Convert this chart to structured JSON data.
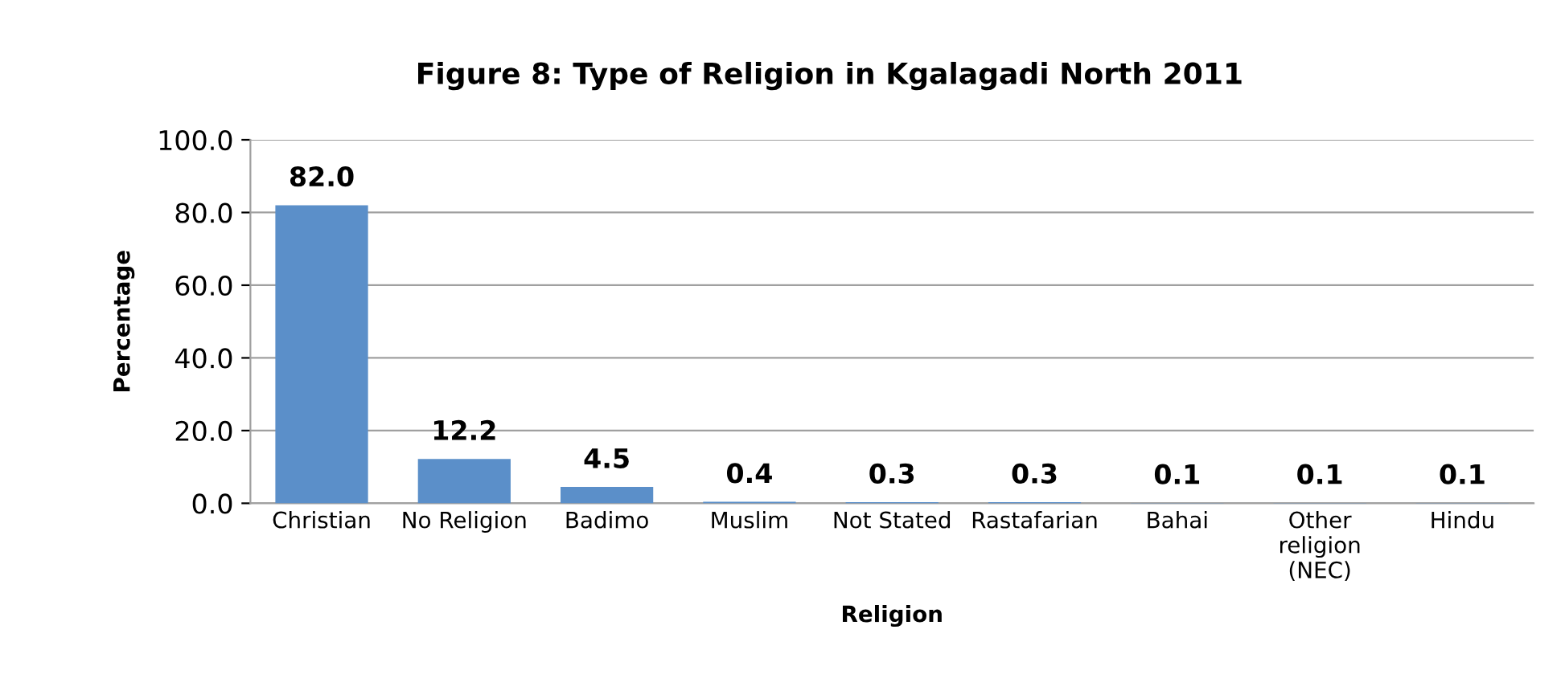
{
  "chart_data": {
    "type": "bar",
    "title": "Figure 8: Type of Religion in Kgalagadi North 2011",
    "xlabel": "Religion",
    "ylabel": "Percentage",
    "categories": [
      "Christian",
      "No Religion",
      "Badimo",
      "Muslim",
      "Not Stated",
      "Rastafarian",
      "Bahai",
      "Other religion (NEC)",
      "Hindu"
    ],
    "values": [
      82.0,
      12.2,
      4.5,
      0.4,
      0.3,
      0.3,
      0.1,
      0.1,
      0.1
    ],
    "value_labels": [
      "82.0",
      "12.2",
      "4.5",
      "0.4",
      "0.3",
      "0.3",
      "0.1",
      "0.1",
      "0.1"
    ],
    "color": "#5b8fc9",
    "ylim": [
      0,
      100
    ],
    "yticks": [
      {
        "value": 0,
        "label": "0.0"
      },
      {
        "value": 20,
        "label": "20.0"
      },
      {
        "value": 40,
        "label": "40.0"
      },
      {
        "value": 60,
        "label": "60.0"
      },
      {
        "value": 80,
        "label": "80.0"
      },
      {
        "value": 100,
        "label": "100.0"
      }
    ],
    "grid": "y",
    "legend": false
  }
}
